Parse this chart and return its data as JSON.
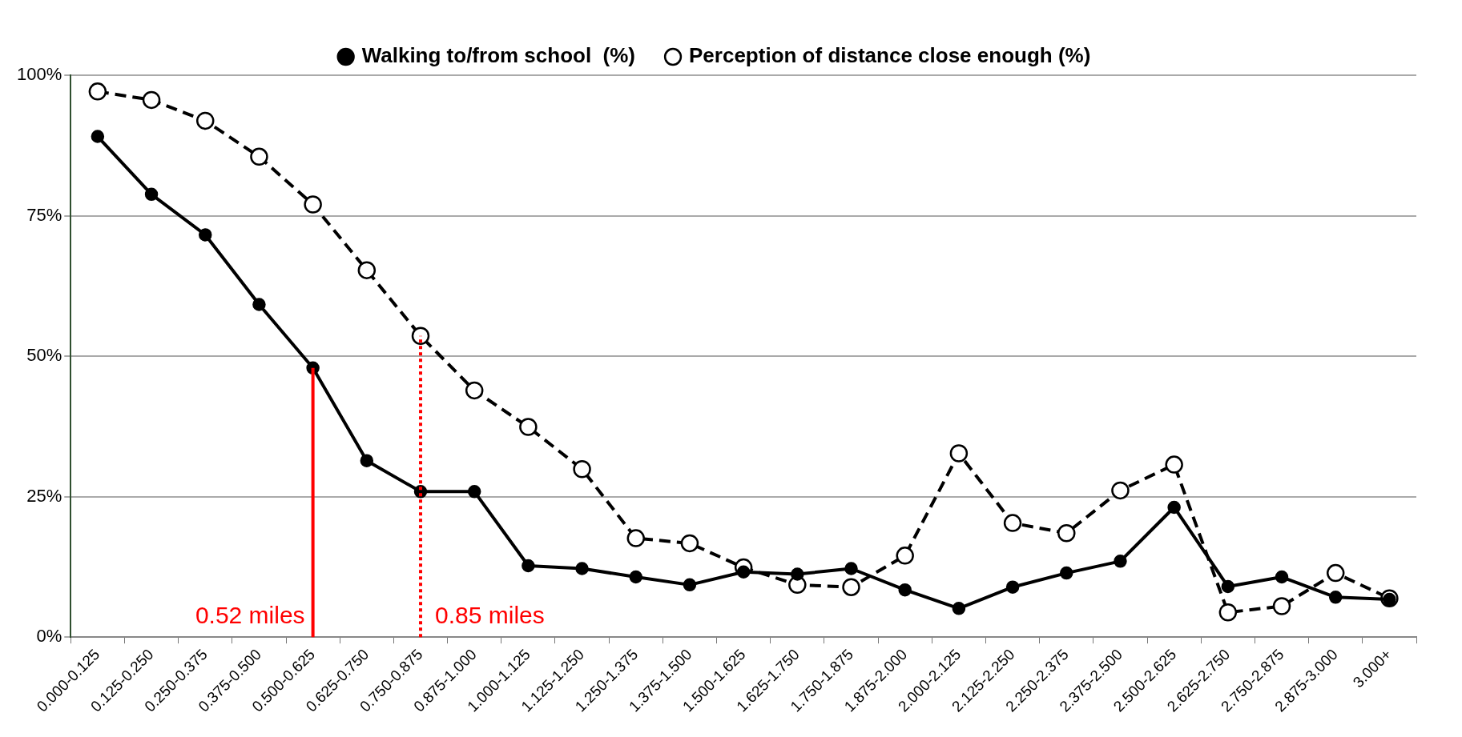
{
  "chart_data": {
    "type": "line",
    "categories": [
      "0.000-0.125",
      "0.125-0.250",
      "0.250-0.375",
      "0.375-0.500",
      "0.500-0.625",
      "0.625-0.750",
      "0.750-0.875",
      "0.875-1.000",
      "1.000-1.125",
      "1.125-1.250",
      "1.250-1.375",
      "1.375-1.500",
      "1.500-1.625",
      "1.625-1.750",
      "1.750-1.875",
      "1.875-2.000",
      "2.000-2.125",
      "2.125-2.250",
      "2.250-2.375",
      "2.375-2.500",
      "2.500-2.625",
      "2.625-2.750",
      "2.750-2.875",
      "2.875-3.000",
      "3.000+"
    ],
    "series": [
      {
        "name": "Walking to/from school  (%)",
        "color": "#000000",
        "line_style": "solid",
        "values": [
          89.1,
          78.8,
          71.6,
          59.2,
          47.9,
          31.4,
          25.9,
          25.9,
          12.7,
          12.2,
          10.7,
          9.3,
          11.6,
          11.2,
          12.2,
          8.4,
          5.1,
          8.9,
          11.4,
          13.5,
          23.1,
          9.0,
          10.7,
          7.1,
          6.7
        ]
      },
      {
        "name": "Perception of distance close enough (%)",
        "color": "#000000",
        "line_style": "dashed",
        "values": [
          97.1,
          95.6,
          91.9,
          85.5,
          77.0,
          65.3,
          53.6,
          43.9,
          37.4,
          29.9,
          17.6,
          16.7,
          12.4,
          9.3,
          8.9,
          14.5,
          32.7,
          20.3,
          18.5,
          26.1,
          30.7,
          4.4,
          5.5,
          11.4,
          6.9
        ]
      }
    ],
    "ylim": [
      0,
      100
    ],
    "yticks": [
      {
        "value": 0,
        "label": "0%"
      },
      {
        "value": 25,
        "label": "25%"
      },
      {
        "value": 50,
        "label": "50%"
      },
      {
        "value": 75,
        "label": "75%"
      },
      {
        "value": 100,
        "label": "100%"
      }
    ],
    "grid": "y",
    "legend": "top",
    "marker": "circle",
    "ref_lines": [
      {
        "axis": "x",
        "value": "0.500-0.625",
        "label": "0.52 miles",
        "color": "#ff0000",
        "line_style": "solid"
      },
      {
        "axis": "x",
        "value": "0.750-0.875",
        "label": "0.85 miles",
        "color": "#ff0000",
        "line_style": "dotted"
      }
    ]
  }
}
